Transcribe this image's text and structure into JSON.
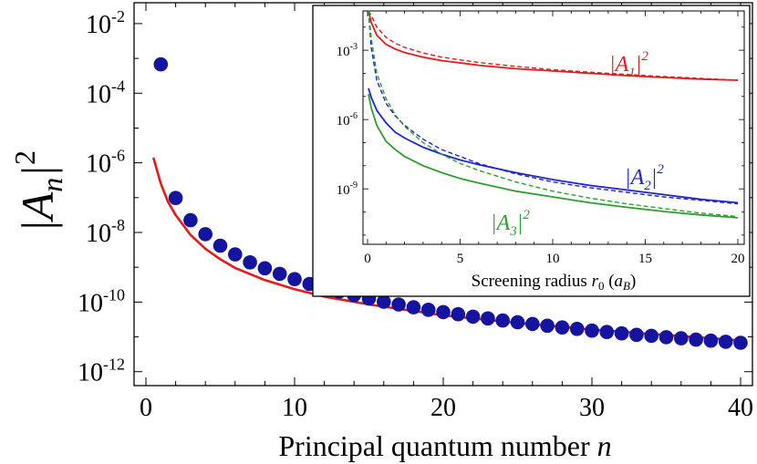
{
  "chart_data": [
    {
      "type": "scatter",
      "xlabel": "Principal quantum number",
      "xlabel_var": "n",
      "ylabel": "|A",
      "ylabel_sub": "n",
      "ylabel_sup": "2",
      "xlim": [
        0,
        40
      ],
      "ylim_log10": [
        -12.4,
        -1.4
      ],
      "yscale": "log",
      "xticks": [
        0,
        10,
        20,
        30,
        40
      ],
      "yticks": [
        {
          "base": "10",
          "exp": "-2",
          "log": -2
        },
        {
          "base": "10",
          "exp": "-4",
          "log": -4
        },
        {
          "base": "10",
          "exp": "-6",
          "log": -6
        },
        {
          "base": "10",
          "exp": "-8",
          "log": -8
        },
        {
          "base": "10",
          "exp": "-10",
          "log": -10
        },
        {
          "base": "10",
          "exp": "-12",
          "log": -12
        }
      ],
      "series": [
        {
          "kind": "points",
          "color": "#1414a0",
          "x": [
            1,
            2,
            3,
            4,
            5,
            6,
            7,
            8,
            9,
            10,
            11,
            12,
            13,
            14,
            15,
            16,
            17,
            18,
            19,
            20,
            21,
            22,
            23,
            24,
            25,
            26,
            27,
            28,
            29,
            30,
            31,
            32,
            33,
            34,
            35,
            36,
            37,
            38,
            39,
            40
          ],
          "log10_y": [
            -3.17,
            -7.01,
            -7.65,
            -8.05,
            -8.38,
            -8.63,
            -8.86,
            -9.03,
            -9.19,
            -9.34,
            -9.48,
            -9.6,
            -9.7,
            -9.8,
            -9.9,
            -9.99,
            -10.07,
            -10.15,
            -10.22,
            -10.29,
            -10.35,
            -10.42,
            -10.47,
            -10.53,
            -10.58,
            -10.63,
            -10.68,
            -10.73,
            -10.77,
            -10.82,
            -10.86,
            -10.9,
            -10.94,
            -10.97,
            -11.01,
            -11.04,
            -11.08,
            -11.11,
            -11.14,
            -11.17
          ]
        },
        {
          "kind": "line",
          "color": "#e41a1c",
          "x": [
            0.5,
            1,
            1.5,
            2,
            3,
            4,
            5,
            6,
            8,
            10,
            12,
            15,
            20,
            25,
            30,
            35,
            40
          ],
          "log10_y": [
            -5.85,
            -6.6,
            -7.13,
            -7.5,
            -8.07,
            -8.47,
            -8.77,
            -9.02,
            -9.37,
            -9.63,
            -9.84,
            -10.07,
            -10.38,
            -10.6,
            -10.79,
            -10.95,
            -11.1
          ]
        }
      ]
    },
    {
      "type": "line",
      "inset": true,
      "xlabel": "Screening radius",
      "xlabel_var": "r",
      "xlabel_var_sub": "0",
      "xlabel_paren_open": "(",
      "xlabel_unit": "a",
      "xlabel_unit_sub": "B",
      "xlabel_paren_close": ")",
      "xlim": [
        0,
        20
      ],
      "ylim_log10": [
        -11.4,
        -1.3
      ],
      "yscale": "log",
      "xticks": [
        0,
        5,
        10,
        15,
        20
      ],
      "yticks": [
        {
          "base": "10",
          "exp": "-3",
          "log": -3
        },
        {
          "base": "10",
          "exp": "-6",
          "log": -6
        },
        {
          "base": "10",
          "exp": "-9",
          "log": -9
        }
      ],
      "x": [
        0.05,
        0.2,
        0.5,
        1,
        1.5,
        2,
        3,
        4,
        5,
        6,
        8,
        10,
        12,
        14,
        16,
        18,
        20
      ],
      "series": [
        {
          "id": "A1-solid",
          "color": "#e41a1c",
          "dash": false,
          "log10_y": [
            -1.3,
            -1.8,
            -2.35,
            -2.75,
            -2.95,
            -3.1,
            -3.3,
            -3.45,
            -3.55,
            -3.65,
            -3.8,
            -3.9,
            -4.0,
            -4.1,
            -4.18,
            -4.25,
            -4.3
          ]
        },
        {
          "id": "A1-dashed",
          "color": "#e41a1c",
          "dash": true,
          "log10_y": [
            -1.3,
            -1.5,
            -2.0,
            -2.45,
            -2.7,
            -2.88,
            -3.12,
            -3.3,
            -3.42,
            -3.53,
            -3.7,
            -3.84,
            -3.95,
            -4.05,
            -4.14,
            -4.22,
            -4.3
          ]
        },
        {
          "id": "A2-solid",
          "color": "#1c22d8",
          "dash": false,
          "log10_y": [
            -4.65,
            -5.05,
            -5.6,
            -6.15,
            -6.55,
            -6.8,
            -7.2,
            -7.5,
            -7.75,
            -7.95,
            -8.3,
            -8.6,
            -8.85,
            -9.05,
            -9.25,
            -9.45,
            -9.6
          ]
        },
        {
          "id": "A2-dashed",
          "color": "#1c22d8",
          "dash": true,
          "log10_y": [
            -1.3,
            -2.9,
            -4.3,
            -5.3,
            -5.85,
            -6.25,
            -6.85,
            -7.3,
            -7.6,
            -7.9,
            -8.35,
            -8.7,
            -8.95,
            -9.15,
            -9.35,
            -9.5,
            -9.65
          ]
        },
        {
          "id": "A3-solid",
          "color": "#2ca02c",
          "dash": false,
          "log10_y": [
            -4.9,
            -5.5,
            -6.25,
            -6.95,
            -7.3,
            -7.6,
            -8.0,
            -8.3,
            -8.55,
            -8.75,
            -9.1,
            -9.35,
            -9.6,
            -9.8,
            -9.98,
            -10.13,
            -10.25
          ]
        },
        {
          "id": "A3-dashed",
          "color": "#2ca02c",
          "dash": true,
          "log10_y": [
            -1.3,
            -2.5,
            -4.0,
            -5.1,
            -5.8,
            -6.3,
            -7.0,
            -7.5,
            -7.9,
            -8.2,
            -8.7,
            -9.1,
            -9.4,
            -9.65,
            -9.85,
            -10.05,
            -10.2
          ]
        }
      ],
      "labels": [
        {
          "text": "|A",
          "sub": "1",
          "close": "|",
          "sup": "2",
          "color": "#e41a1c"
        },
        {
          "text": "|A",
          "sub": "2",
          "close": "|",
          "sup": "2",
          "color": "#1c22d8"
        },
        {
          "text": "|A",
          "sub": "3",
          "close": "|",
          "sup": "2",
          "color": "#2ca02c"
        }
      ]
    }
  ]
}
